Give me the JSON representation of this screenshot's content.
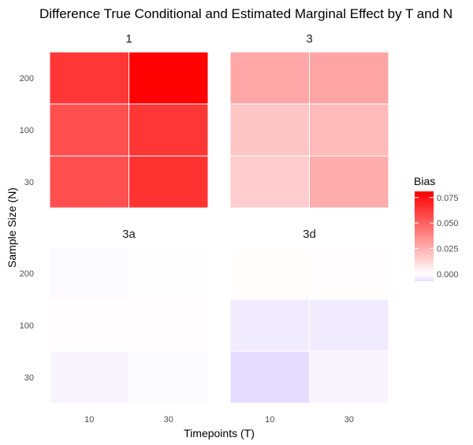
{
  "chart_data": {
    "type": "heatmap",
    "title": "Difference True Conditional and Estimated Marginal Effect by T and N",
    "xlabel": "Timepoints (T)",
    "ylabel": "Sample Size (N)",
    "x_categories": [
      "10",
      "30"
    ],
    "y_categories": [
      "30",
      "100",
      "200"
    ],
    "legend": {
      "title": "Bias",
      "placement": "right",
      "range": [
        -0.007,
        0.081
      ],
      "ticks": [
        0.0,
        0.025,
        0.05,
        0.075
      ],
      "tick_labels": [
        "0.000",
        "0.025",
        "0.050",
        "0.075"
      ],
      "color_low": "#e6dcff",
      "color_mid": "#ffffff",
      "color_high": "#ff0000"
    },
    "panels": [
      {
        "label": "1",
        "values": {
          "30": {
            "10": 0.056,
            "30": 0.065
          },
          "100": {
            "10": 0.056,
            "30": 0.064
          },
          "200": {
            "10": 0.064,
            "30": 0.08
          }
        }
      },
      {
        "label": "3",
        "values": {
          "30": {
            "10": 0.016,
            "30": 0.026
          },
          "100": {
            "10": 0.018,
            "30": 0.022
          },
          "200": {
            "10": 0.028,
            "30": 0.029
          }
        }
      },
      {
        "label": "3a",
        "values": {
          "30": {
            "10": -0.002,
            "30": -0.001
          },
          "100": {
            "10": 0.0005,
            "30": 0.0005
          },
          "200": {
            "10": -0.001,
            "30": 0.0003
          }
        }
      },
      {
        "label": "3d",
        "values": {
          "30": {
            "10": -0.007,
            "30": -0.002
          },
          "100": {
            "10": -0.004,
            "30": -0.004
          },
          "200": {
            "10": 0.001,
            "30": 0.0005
          }
        }
      }
    ]
  }
}
